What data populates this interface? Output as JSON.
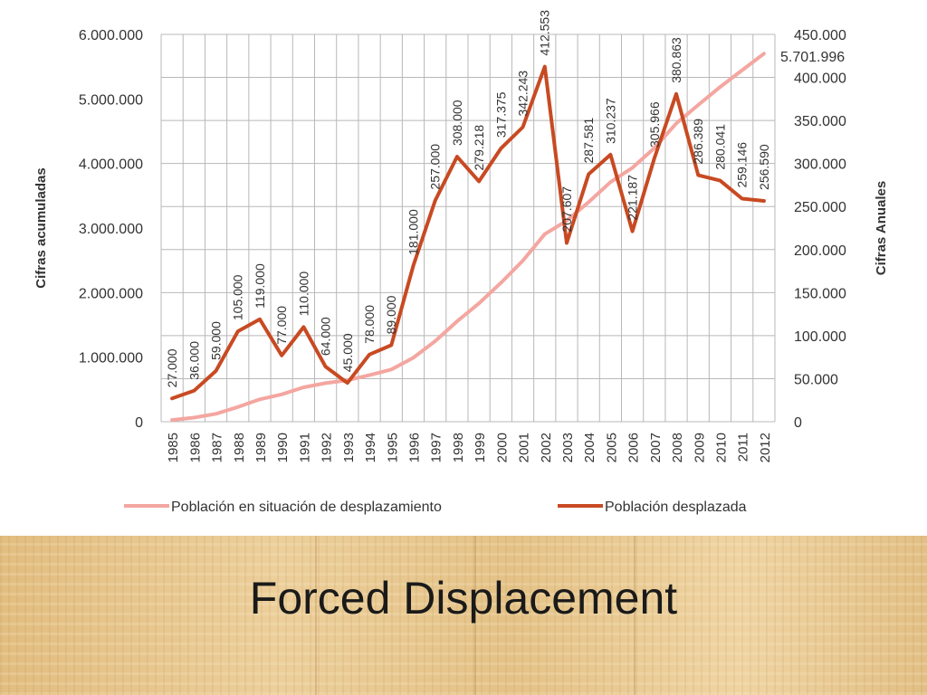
{
  "slide": {
    "title": "Forced Displacement"
  },
  "colors": {
    "cumulative_line": "#f4a6a0",
    "annual_line": "#c84a22",
    "grid": "#b8b8b8"
  },
  "chart_data": {
    "type": "line",
    "categories": [
      "1985",
      "1986",
      "1987",
      "1988",
      "1989",
      "1990",
      "1991",
      "1992",
      "1993",
      "1994",
      "1995",
      "1996",
      "1997",
      "1998",
      "1999",
      "2000",
      "2001",
      "2002",
      "2003",
      "2004",
      "2005",
      "2006",
      "2007",
      "2008",
      "2009",
      "2010",
      "2011",
      "2012"
    ],
    "series": [
      {
        "name": "Población en situación de desplazamiento",
        "axis": "left",
        "values": [
          27000,
          63000,
          122000,
          227000,
          346000,
          423000,
          533000,
          597000,
          642000,
          720000,
          809000,
          990000,
          1247000,
          1555000,
          1834000,
          2151000,
          2494000,
          2906000,
          3114000,
          3401000,
          3712000,
          3933000,
          4239000,
          4620000,
          4906000,
          5186000,
          5445000,
          5701996
        ]
      },
      {
        "name": "Población desplazada",
        "axis": "right",
        "values": [
          27000,
          36000,
          59000,
          105000,
          119000,
          77000,
          110000,
          64000,
          45000,
          78000,
          89000,
          181000,
          257000,
          308000,
          279218,
          317375,
          342243,
          412553,
          207607,
          287581,
          310237,
          221187,
          305966,
          380863,
          286389,
          280041,
          259146,
          256590
        ],
        "labels": [
          "27.000",
          "36.000",
          "59.000",
          "105.000",
          "119.000",
          "77.000",
          "110.000",
          "64.000",
          "45.000",
          "78.000",
          "89.000",
          "181.000",
          "257.000",
          "308.000",
          "279.218",
          "317.375",
          "342.243",
          "412.553",
          "207.607",
          "287.581",
          "310.237",
          "221.187",
          "305.966",
          "380.863",
          "286.389",
          "280.041",
          "259.146",
          "256.590"
        ]
      }
    ],
    "end_label": "5.701.996",
    "y_left": {
      "title": "Cifras acumuladas",
      "ylim": [
        0,
        6000000
      ],
      "ticks": [
        0,
        1000000,
        2000000,
        3000000,
        4000000,
        5000000,
        6000000
      ],
      "tick_labels": [
        "0",
        "1.000.000",
        "2.000.000",
        "3.000.000",
        "4.000.000",
        "5.000.000",
        "6.000.000"
      ]
    },
    "y_right": {
      "title": "Cifras Anuales",
      "ylim": [
        0,
        450000
      ],
      "ticks": [
        0,
        50000,
        100000,
        150000,
        200000,
        250000,
        300000,
        350000,
        400000,
        450000
      ],
      "tick_labels": [
        "0",
        "50.000",
        "100.000",
        "150.000",
        "200.000",
        "250.000",
        "300.000",
        "350.000",
        "400.000",
        "450.000"
      ]
    },
    "grid": true,
    "legend": {
      "position": "bottom"
    }
  }
}
